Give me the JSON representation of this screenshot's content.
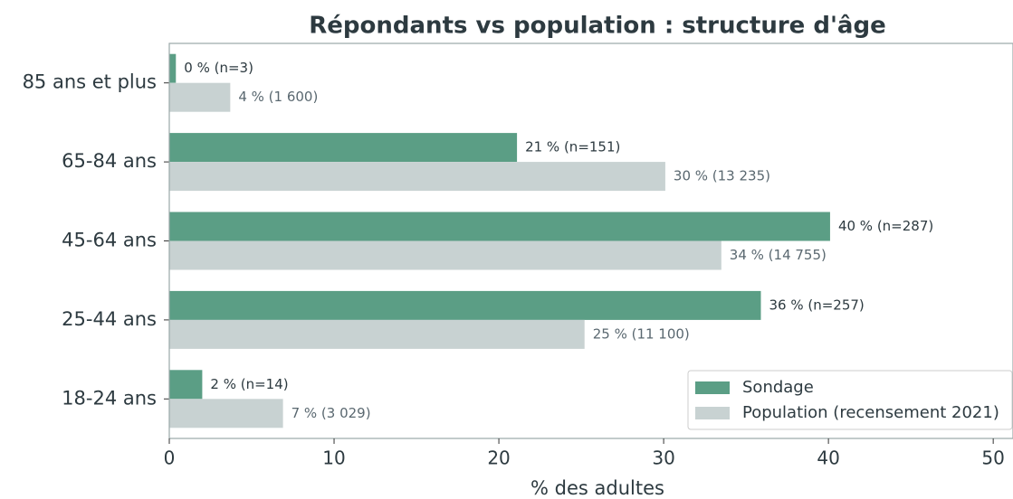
{
  "chart_data": {
    "type": "hbar_grouped",
    "title": "Répondants vs population : structure d'âge",
    "xlabel": "% des adultes",
    "categories": [
      "85 ans et plus",
      "65-84 ans",
      "45-64 ans",
      "25-44 ans",
      "18-24 ans"
    ],
    "series": [
      {
        "name": "Sondage",
        "color": "#5b9e85",
        "values": [
          0.4,
          21.1,
          40.1,
          35.9,
          2.0
        ],
        "value_labels": [
          "0 % (n=3)",
          "21 % (n=151)",
          "40 % (n=287)",
          "36 % (n=257)",
          "2 % (n=14)"
        ]
      },
      {
        "name": "Population (recensement 2021)",
        "color": "#c8d2d2",
        "values": [
          3.7,
          30.1,
          33.5,
          25.2,
          6.9
        ],
        "value_labels": [
          "4 % (1 600)",
          "30 % (13 235)",
          "34 % (14 755)",
          "25 % (11 100)",
          "7 % (3 029)"
        ]
      }
    ],
    "xlim": [
      0,
      51.2
    ],
    "xticks": [
      0,
      10,
      20,
      30,
      40,
      50
    ],
    "legend": "lower right"
  }
}
